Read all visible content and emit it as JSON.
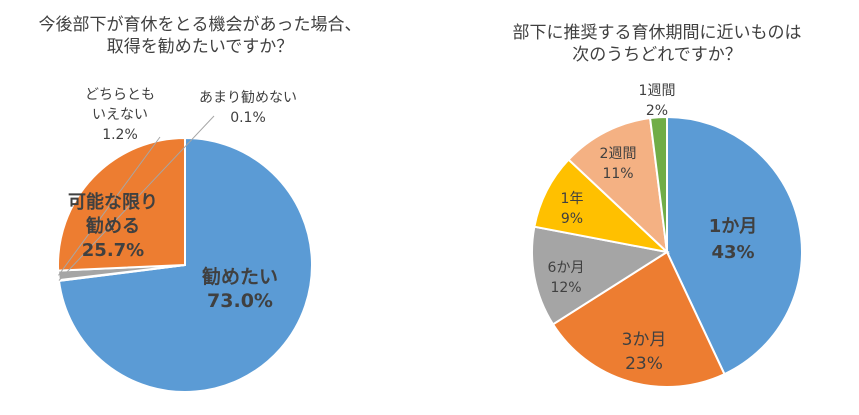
{
  "chart_data": [
    {
      "type": "pie",
      "title": "今後部下が育休をとる機会があった場合、取得を勧めたいですか？",
      "title_lines": [
        "今後部下が育休をとる機会があった場合、",
        "取得を勧めたいですか？"
      ],
      "slices": [
        {
          "label": "勧めたい",
          "label_lines": [
            "勧めたい"
          ],
          "value_text": "73.0%",
          "value": 73.0,
          "color": "#5B9BD5"
        },
        {
          "label": "あまり勧めない",
          "label_lines": [
            "あまり勧めない"
          ],
          "value_text": "0.1%",
          "value": 0.1,
          "color": "#A5A5A5"
        },
        {
          "label": "どちらともいえない",
          "label_lines": [
            "どちらとも",
            "いえない"
          ],
          "value_text": "1.2%",
          "value": 1.2,
          "color": "#A5A5A5"
        },
        {
          "label": "可能な限り勧める",
          "label_lines": [
            "可能な限り",
            "勧める"
          ],
          "value_text": "25.7%",
          "value": 25.7,
          "color": "#ED7D31"
        }
      ]
    },
    {
      "type": "pie",
      "title": "部下に推奨する育休期間に近いものは次のうちどれですか？",
      "title_lines": [
        "部下に推奨する育休期間に近いものは",
        "次のうちどれですか？"
      ],
      "slices": [
        {
          "label": "1か月",
          "value_text": "43%",
          "value": 43,
          "color": "#5B9BD5"
        },
        {
          "label": "3か月",
          "value_text": "23%",
          "value": 23,
          "color": "#ED7D31"
        },
        {
          "label": "6か月",
          "value_text": "12%",
          "value": 12,
          "color": "#A5A5A5"
        },
        {
          "label": "1年",
          "value_text": "9%",
          "value": 9,
          "color": "#FFC000"
        },
        {
          "label": "2週間",
          "value_text": "11%",
          "value": 11,
          "color": "#F4B183"
        },
        {
          "label": "1週間",
          "value_text": "2%",
          "value": 2,
          "color": "#70AD47"
        }
      ]
    }
  ]
}
